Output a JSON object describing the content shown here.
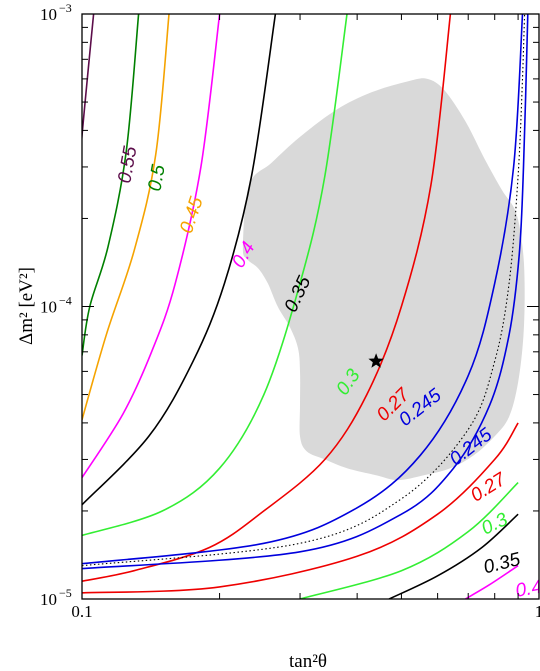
{
  "chart_data": {
    "type": "line",
    "xlabel": "tan²θ",
    "ylabel": "Δm² [eV²]",
    "xscale": "log",
    "yscale": "log",
    "xlim": [
      0.1,
      1
    ],
    "ylim": [
      1e-05,
      0.001
    ],
    "x_tick_labels": [
      {
        "value": 0.1,
        "label": "0.1"
      },
      {
        "value": 1,
        "label": "1"
      }
    ],
    "y_tick_labels": [
      {
        "value": 1e-05,
        "base": "10",
        "exp": "−5"
      },
      {
        "value": 0.0001,
        "base": "10",
        "exp": "−4"
      },
      {
        "value": 0.001,
        "base": "10",
        "exp": "−3"
      }
    ],
    "grid": false,
    "best_fit_point": {
      "x": 0.44,
      "y": 6.5e-05,
      "marker": "star"
    },
    "allowed_region": {
      "color": "#d9d9d9",
      "boundary": [
        [
          0.225,
          0.00016
        ],
        [
          0.232,
          0.00026
        ],
        [
          0.26,
          0.00031
        ],
        [
          0.3,
          0.00038
        ],
        [
          0.36,
          0.00047
        ],
        [
          0.43,
          0.00054
        ],
        [
          0.52,
          0.00059
        ],
        [
          0.57,
          0.0006
        ],
        [
          0.62,
          0.00055
        ],
        [
          0.69,
          0.00043
        ],
        [
          0.76,
          0.00032
        ],
        [
          0.83,
          0.00025
        ],
        [
          0.89,
          0.00021
        ],
        [
          0.92,
          0.00016
        ],
        [
          0.93,
          0.00012
        ],
        [
          0.925,
          8e-05
        ],
        [
          0.9,
          5.5e-05
        ],
        [
          0.86,
          4.2e-05
        ],
        [
          0.8,
          3.6e-05
        ],
        [
          0.72,
          3.1e-05
        ],
        [
          0.64,
          2.8e-05
        ],
        [
          0.56,
          2.65e-05
        ],
        [
          0.49,
          2.55e-05
        ],
        [
          0.44,
          2.65e-05
        ],
        [
          0.38,
          2.8e-05
        ],
        [
          0.34,
          3e-05
        ],
        [
          0.31,
          3.2e-05
        ],
        [
          0.3,
          3.6e-05
        ],
        [
          0.3,
          4.6e-05
        ],
        [
          0.3,
          6e-05
        ],
        [
          0.297,
          7.2e-05
        ],
        [
          0.285,
          8.5e-05
        ],
        [
          0.268,
          0.0001
        ],
        [
          0.255,
          0.00012
        ],
        [
          0.243,
          0.000135
        ],
        [
          0.23,
          0.000145
        ]
      ]
    },
    "dotted_curve": {
      "color": "#000000",
      "points": [
        [
          0.1,
          1.3e-05
        ],
        [
          0.3,
          1.55e-05
        ],
        [
          0.5,
          2.2e-05
        ],
        [
          0.7,
          3.8e-05
        ],
        [
          0.8,
          6.5e-05
        ],
        [
          0.86,
          0.00012
        ],
        [
          0.9,
          0.00028
        ],
        [
          0.92,
          0.0006
        ],
        [
          0.93,
          0.001
        ]
      ]
    },
    "series": [
      {
        "label": "0.55",
        "color": "#5c0d4a",
        "points": [
          [
            0.106,
            0.001
          ],
          [
            0.099,
            0.00032
          ],
          [
            0.097,
            0.00018
          ]
        ]
      },
      {
        "label": "0.5",
        "color": "#008000",
        "points": [
          [
            0.133,
            0.001
          ],
          [
            0.125,
            0.00034
          ],
          [
            0.114,
            0.00016
          ],
          [
            0.104,
            0.0001
          ],
          [
            0.1,
            6.8e-05
          ]
        ]
      },
      {
        "label": "0.45",
        "color": "#f5a300",
        "points": [
          [
            0.155,
            0.001
          ],
          [
            0.145,
            0.00033
          ],
          [
            0.13,
            0.000155
          ],
          [
            0.113,
            8e-05
          ],
          [
            0.1,
            4.1e-05
          ]
        ]
      },
      {
        "label": "0.4",
        "color": "#ff00ff",
        "points": [
          [
            0.2,
            0.001
          ],
          [
            0.182,
            0.0003
          ],
          [
            0.16,
            0.00012
          ],
          [
            0.142,
            7e-05
          ],
          [
            0.123,
            4.3e-05
          ],
          [
            0.1,
            2.6e-05
          ]
        ]
      },
      {
        "label": "0.4",
        "color": "#ff00ff",
        "points": [
          [
            0.69,
            1e-05
          ],
          [
            0.78,
            1.12e-05
          ],
          [
            0.9,
            1.3e-05
          ]
        ]
      },
      {
        "label": "0.35",
        "color": "#000000",
        "points": [
          [
            0.265,
            0.001
          ],
          [
            0.235,
            0.00028
          ],
          [
            0.205,
            0.00012
          ],
          [
            0.175,
            6.5e-05
          ],
          [
            0.14,
            3.6e-05
          ],
          [
            0.1,
            2.1e-05
          ]
        ]
      },
      {
        "label": "0.35",
        "color": "#000000",
        "points": [
          [
            0.47,
            1e-05
          ],
          [
            0.6,
            1.2e-05
          ],
          [
            0.75,
            1.5e-05
          ],
          [
            0.9,
            1.95e-05
          ]
        ]
      },
      {
        "label": "0.3",
        "color": "#33ee33",
        "points": [
          [
            0.38,
            0.001
          ],
          [
            0.34,
            0.00028
          ],
          [
            0.3,
            0.00012
          ],
          [
            0.25,
            5e-05
          ],
          [
            0.2,
            2.8e-05
          ],
          [
            0.15,
            2e-05
          ],
          [
            0.1,
            1.65e-05
          ]
        ]
      },
      {
        "label": "0.3",
        "color": "#33ee33",
        "points": [
          [
            0.3,
            1e-05
          ],
          [
            0.5,
            1.25e-05
          ],
          [
            0.7,
            1.7e-05
          ],
          [
            0.9,
            2.5e-05
          ]
        ]
      },
      {
        "label": "0.27",
        "color": "#ee0000",
        "points": [
          [
            0.64,
            0.001
          ],
          [
            0.58,
            0.00026
          ],
          [
            0.5,
            0.0001
          ],
          [
            0.42,
            5e-05
          ],
          [
            0.34,
            3e-05
          ],
          [
            0.25,
            2e-05
          ],
          [
            0.19,
            1.5e-05
          ],
          [
            0.13,
            1.25e-05
          ],
          [
            0.1,
            1.15e-05
          ]
        ]
      },
      {
        "label": "0.27",
        "color": "#ee0000",
        "points": [
          [
            0.1,
            1.05e-05
          ],
          [
            0.2,
            1.1e-05
          ],
          [
            0.4,
            1.4e-05
          ],
          [
            0.6,
            1.95e-05
          ],
          [
            0.8,
            3e-05
          ],
          [
            0.9,
            4e-05
          ]
        ]
      },
      {
        "label": "0.245",
        "color": "#0000dd",
        "points": [
          [
            0.92,
            0.001
          ],
          [
            0.88,
            0.0003
          ],
          [
            0.8,
            0.00012
          ],
          [
            0.7,
            5.8e-05
          ],
          [
            0.55,
            3.1e-05
          ],
          [
            0.4,
            2.05e-05
          ],
          [
            0.25,
            1.55e-05
          ],
          [
            0.1,
            1.32e-05
          ]
        ]
      },
      {
        "label": "0.245",
        "color": "#0000dd",
        "points": [
          [
            0.1,
            1.27e-05
          ],
          [
            0.3,
            1.45e-05
          ],
          [
            0.5,
            1.95e-05
          ],
          [
            0.65,
            2.8e-05
          ],
          [
            0.78,
            4.6e-05
          ],
          [
            0.86,
            8e-05
          ],
          [
            0.905,
            0.00015
          ],
          [
            0.925,
            0.0003
          ],
          [
            0.945,
            0.001
          ]
        ]
      }
    ],
    "contour_labels": [
      {
        "text": "0.55",
        "color": "#5c0d4a",
        "x": 0.126,
        "y": 0.000305,
        "angle": -80
      },
      {
        "text": "0.5",
        "color": "#008000",
        "x": 0.146,
        "y": 0.000275,
        "angle": -80
      },
      {
        "text": "0.45",
        "color": "#f5a300",
        "x": 0.174,
        "y": 0.000205,
        "angle": -72
      },
      {
        "text": "0.4",
        "color": "#ff00ff",
        "x": 0.226,
        "y": 0.00015,
        "angle": -60
      },
      {
        "text": "0.35",
        "color": "#000000",
        "x": 0.297,
        "y": 0.00011,
        "angle": -65
      },
      {
        "text": "0.3",
        "color": "#33ee33",
        "x": 0.383,
        "y": 5.5e-05,
        "angle": -55
      },
      {
        "text": "0.27",
        "color": "#ee0000",
        "x": 0.48,
        "y": 4.6e-05,
        "angle": -45
      },
      {
        "text": "0.245",
        "color": "#0000dd",
        "x": 0.55,
        "y": 4.5e-05,
        "angle": -38
      },
      {
        "text": "0.245",
        "color": "#0000dd",
        "x": 0.71,
        "y": 3.3e-05,
        "angle": -38
      },
      {
        "text": "0.27",
        "color": "#ee0000",
        "x": 0.775,
        "y": 2.4e-05,
        "angle": -32
      },
      {
        "text": "0.3",
        "color": "#33ee33",
        "x": 0.8,
        "y": 1.8e-05,
        "angle": -26
      },
      {
        "text": "0.35",
        "color": "#000000",
        "x": 0.83,
        "y": 1.32e-05,
        "angle": -14
      },
      {
        "text": "0.4",
        "color": "#ff00ff",
        "x": 0.95,
        "y": 1.08e-05,
        "angle": -10
      }
    ]
  }
}
